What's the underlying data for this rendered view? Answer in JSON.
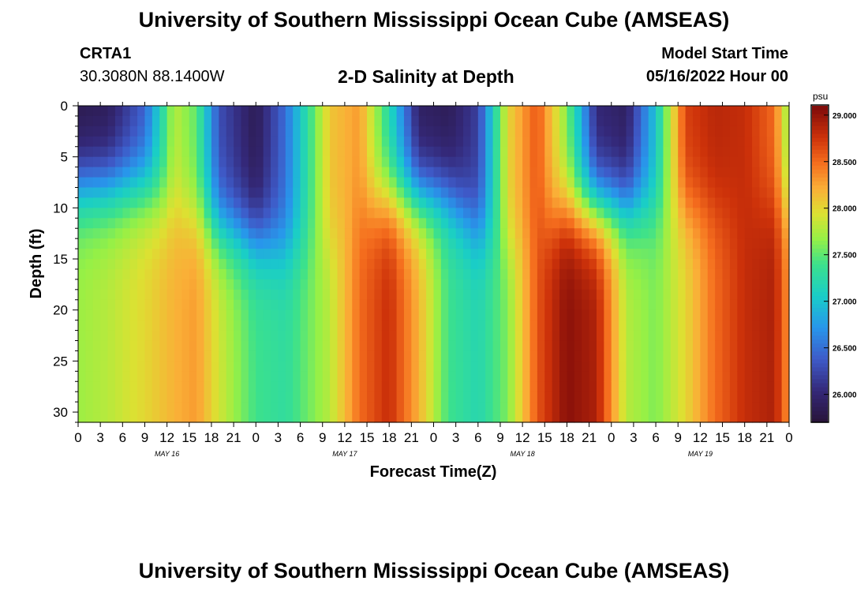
{
  "header": {
    "title": "University of Southern Mississippi Ocean Cube (AMSEAS)",
    "station_id": "CRTA1",
    "station_coords": "30.3080N  88.1400W",
    "plot_title": "2-D Salinity at Depth",
    "model_start_label": "Model Start Time",
    "model_start_value": "05/16/2022 Hour 00"
  },
  "footer": {
    "title": "University of Southern Mississippi Ocean Cube (AMSEAS)"
  },
  "chart_data": {
    "type": "heatmap",
    "title": "2-D Salinity at Depth",
    "xlabel": "Forecast Time(Z)",
    "ylabel": "Depth (ft)",
    "x_range_hours": [
      0,
      96
    ],
    "x_ticks": [
      "0",
      "3",
      "6",
      "9",
      "12",
      "15",
      "18",
      "21",
      "0",
      "3",
      "6",
      "9",
      "12",
      "15",
      "18",
      "21",
      "0",
      "3",
      "6",
      "9",
      "12",
      "15",
      "18",
      "21",
      "0",
      "3",
      "6",
      "9",
      "12",
      "15",
      "18",
      "21",
      "0"
    ],
    "day_labels": [
      "MAY 16",
      "MAY 17",
      "MAY 18",
      "MAY 19"
    ],
    "ylim": [
      0,
      31
    ],
    "y_ticks": [
      "0",
      "5",
      "10",
      "15",
      "20",
      "25",
      "30"
    ],
    "colorbar": {
      "unit": "psu",
      "range": [
        25.7,
        29.1
      ],
      "ticks": [
        "26.000",
        "26.500",
        "27.000",
        "27.500",
        "28.000",
        "28.500",
        "29.000"
      ],
      "colormap": "turbo"
    },
    "surface_salinity_profile": {
      "hours": [
        0,
        4,
        9,
        13,
        16,
        19,
        24,
        28,
        34,
        38,
        42,
        46,
        50,
        54,
        58,
        62,
        66,
        70,
        74,
        78,
        82,
        86,
        90,
        94,
        96
      ],
      "surface_psu": [
        25.8,
        25.85,
        26.4,
        27.8,
        27.5,
        26.3,
        25.85,
        26.5,
        28.1,
        28.3,
        27.2,
        25.9,
        25.85,
        26.2,
        28.0,
        28.6,
        27.6,
        26.0,
        25.9,
        27.0,
        28.7,
        28.85,
        28.8,
        28.5,
        27.6
      ],
      "bottom_psu": [
        27.7,
        27.8,
        28.0,
        28.2,
        28.3,
        27.9,
        27.4,
        27.3,
        27.8,
        28.5,
        28.8,
        28.2,
        27.4,
        27.2,
        27.6,
        28.6,
        29.05,
        28.9,
        27.8,
        27.6,
        28.0,
        28.5,
        28.8,
        28.9,
        28.3
      ],
      "mix_depth_ft": [
        8,
        8,
        8,
        10,
        11,
        12,
        13,
        14,
        14,
        10,
        9,
        9,
        9,
        12,
        14,
        12,
        10,
        10,
        10,
        10,
        10,
        10,
        10,
        10,
        10
      ]
    }
  }
}
